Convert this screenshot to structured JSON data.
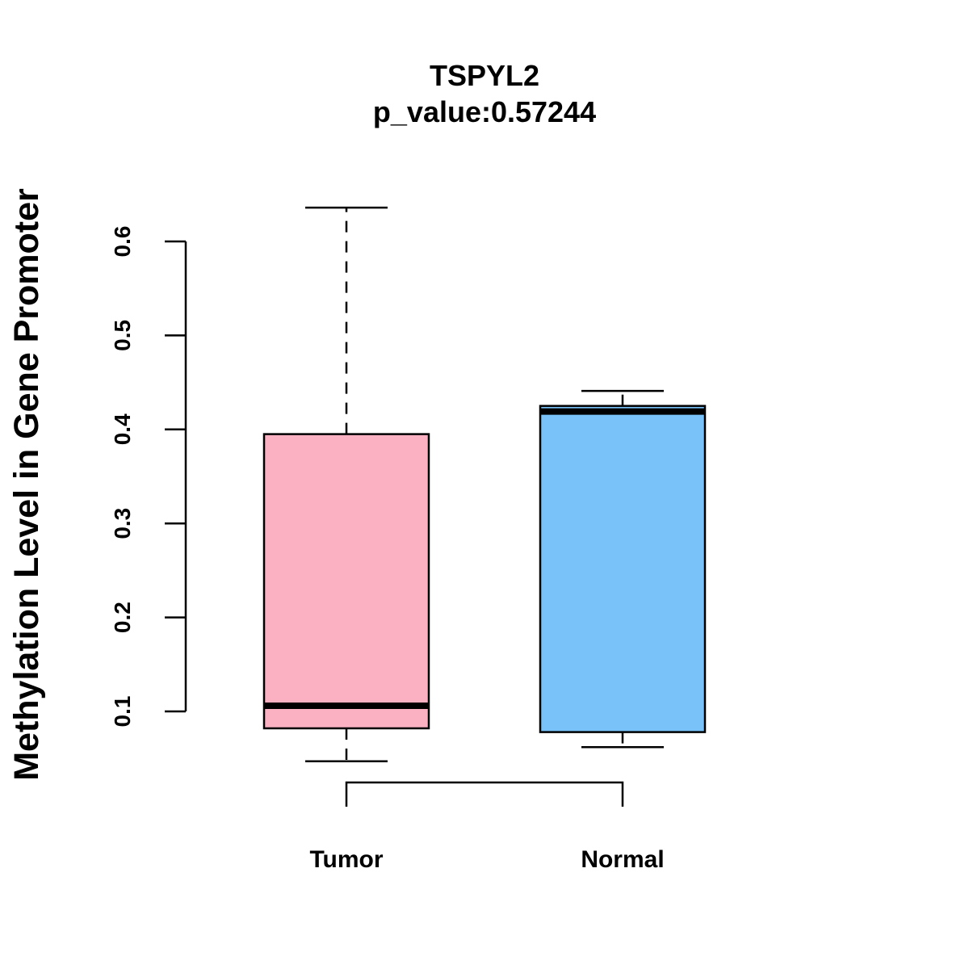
{
  "chart_data": {
    "type": "boxplot",
    "title": "TSPYL2",
    "subtitle": "p_value:0.57244",
    "xlabel": "",
    "ylabel": "Methylation Level in Gene Promoter",
    "ylim": [
      0.1,
      0.6
    ],
    "yticks": [
      "0.1",
      "0.2",
      "0.3",
      "0.4",
      "0.5",
      "0.6"
    ],
    "categories": [
      "Tumor",
      "Normal"
    ],
    "series": [
      {
        "name": "Tumor",
        "color": "#FCB1C3",
        "whisker_low": 0.047,
        "q1": 0.082,
        "median": 0.106,
        "q3": 0.395,
        "whisker_high": 0.636
      },
      {
        "name": "Normal",
        "color": "#78C2F9",
        "whisker_low": 0.062,
        "q1": 0.078,
        "median": 0.419,
        "q3": 0.425,
        "whisker_high": 0.441
      }
    ],
    "grid": false,
    "legend": "none"
  }
}
